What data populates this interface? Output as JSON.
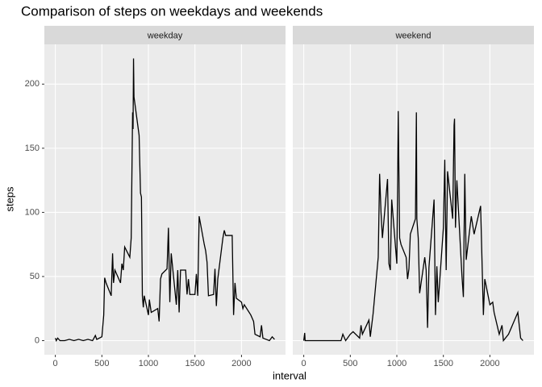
{
  "chart_data": {
    "type": "line",
    "title": "Comparison of steps on weekdays and weekends",
    "x_label": "interval",
    "y_label": "steps",
    "xlim": [
      -118,
      2473
    ],
    "ylim": [
      -11,
      231
    ],
    "xticks": [
      0,
      500,
      1000,
      1500,
      2000
    ],
    "yticks": [
      0,
      50,
      100,
      150,
      200
    ],
    "grid": true,
    "color": "#000000",
    "facets": [
      {
        "name": "weekday",
        "x": [
          0,
          10,
          25,
          50,
          100,
          150,
          200,
          250,
          300,
          350,
          400,
          430,
          445,
          500,
          520,
          530,
          545,
          600,
          615,
          625,
          640,
          700,
          715,
          730,
          745,
          800,
          815,
          830,
          835,
          840,
          845,
          900,
          915,
          925,
          935,
          945,
          955,
          1000,
          1010,
          1030,
          1100,
          1115,
          1130,
          1145,
          1200,
          1215,
          1230,
          1245,
          1300,
          1315,
          1330,
          1345,
          1400,
          1415,
          1430,
          1445,
          1500,
          1515,
          1530,
          1545,
          1600,
          1615,
          1630,
          1645,
          1700,
          1715,
          1730,
          1745,
          1800,
          1815,
          1830,
          1900,
          1915,
          1930,
          1945,
          2000,
          2015,
          2030,
          2100,
          2130,
          2145,
          2200,
          2215,
          2230,
          2300,
          2330,
          2355
        ],
        "values": [
          2,
          0,
          2,
          0,
          0,
          1,
          0,
          1,
          0,
          1,
          0,
          4,
          1,
          3,
          20,
          49,
          45,
          35,
          68,
          45,
          55,
          45,
          60,
          55,
          73,
          65,
          80,
          178,
          165,
          220,
          190,
          160,
          115,
          112,
          35,
          26,
          35,
          20,
          32,
          22,
          25,
          15,
          48,
          52,
          56,
          88,
          30,
          68,
          28,
          55,
          22,
          55,
          55,
          36,
          48,
          36,
          36,
          52,
          35,
          97,
          75,
          70,
          61,
          35,
          36,
          56,
          27,
          48,
          80,
          86,
          82,
          82,
          20,
          45,
          33,
          30,
          25,
          28,
          20,
          15,
          5,
          3,
          12,
          2,
          0,
          3,
          1
        ]
      },
      {
        "name": "weekend",
        "x": [
          0,
          10,
          15,
          100,
          200,
          300,
          400,
          420,
          450,
          500,
          530,
          600,
          615,
          630,
          700,
          715,
          745,
          800,
          815,
          830,
          845,
          900,
          915,
          930,
          945,
          1000,
          1015,
          1030,
          1045,
          1100,
          1115,
          1130,
          1145,
          1200,
          1210,
          1215,
          1230,
          1245,
          1300,
          1315,
          1330,
          1345,
          1400,
          1415,
          1430,
          1445,
          1500,
          1515,
          1530,
          1545,
          1600,
          1615,
          1620,
          1630,
          1645,
          1700,
          1715,
          1730,
          1745,
          1800,
          1830,
          1900,
          1930,
          1945,
          2000,
          2030,
          2045,
          2100,
          2130,
          2145,
          2200,
          2300,
          2330,
          2355
        ],
        "values": [
          0,
          6,
          0,
          0,
          0,
          0,
          0,
          5,
          0,
          5,
          7,
          2,
          12,
          5,
          16,
          3,
          21,
          65,
          130,
          100,
          80,
          126,
          60,
          55,
          110,
          60,
          179,
          80,
          75,
          65,
          48,
          56,
          83,
          95,
          178,
          95,
          80,
          37,
          65,
          55,
          10,
          57,
          110,
          20,
          58,
          30,
          88,
          141,
          55,
          132,
          95,
          168,
          173,
          88,
          125,
          50,
          34,
          130,
          63,
          97,
          83,
          105,
          20,
          48,
          28,
          30,
          22,
          5,
          12,
          0,
          5,
          22,
          2,
          0
        ]
      }
    ]
  }
}
